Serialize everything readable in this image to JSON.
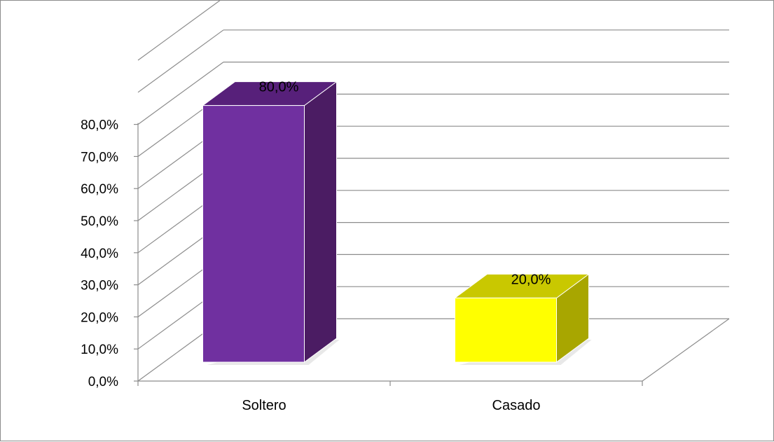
{
  "chart_data": {
    "type": "bar",
    "style": "3d-column",
    "categories": [
      "Soltero",
      "Casado"
    ],
    "values": [
      80.0,
      20.0
    ],
    "data_labels": [
      "80,0%",
      "20,0%"
    ],
    "colors": {
      "Soltero": {
        "front": "#7030a0",
        "side": "#4b1c63",
        "top": "#57207a"
      },
      "Casado": {
        "front": "#ffff00",
        "side": "#a8a600",
        "top": "#c9c800"
      }
    },
    "y_ticks": [
      "0,0%",
      "10,0%",
      "20,0%",
      "30,0%",
      "40,0%",
      "50,0%",
      "60,0%",
      "70,0%",
      "80,0%"
    ],
    "ylim": [
      0,
      100
    ],
    "grid": true,
    "gridline_color": "#8c8c8c",
    "title": "",
    "xlabel": "",
    "ylabel": ""
  }
}
